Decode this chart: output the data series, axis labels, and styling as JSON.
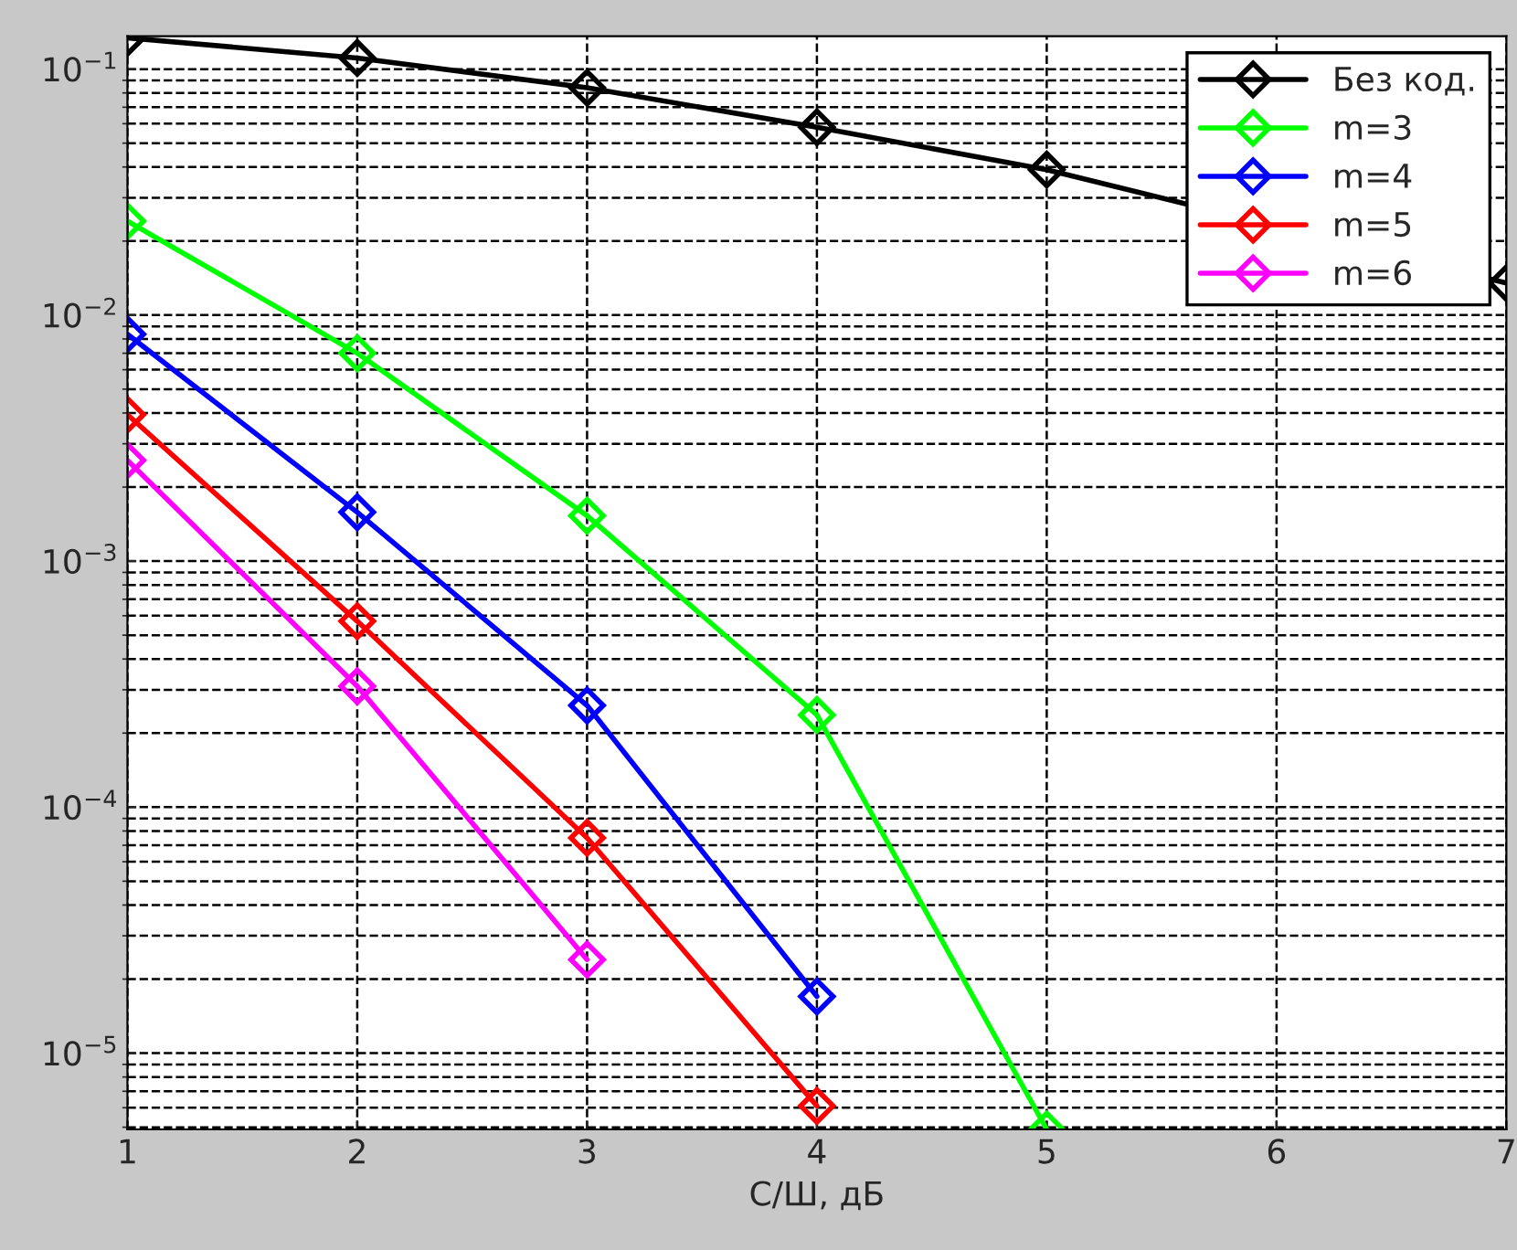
{
  "chart_data": {
    "type": "line",
    "xlabel": "С/Ш, дБ",
    "x": [
      1,
      2,
      3,
      4,
      5,
      6,
      7
    ],
    "series": [
      {
        "name": "Без код.",
        "color": "#000000",
        "values": [
          0.134,
          0.111,
          0.084,
          0.058,
          0.039,
          null,
          0.0135
        ]
      },
      {
        "name": "m=3",
        "color": "#00ff00",
        "values": [
          0.0241,
          0.007,
          0.00153,
          0.000237,
          4.9e-06,
          null,
          null
        ]
      },
      {
        "name": "m=4",
        "color": "#0000ff",
        "values": [
          0.00836,
          0.00158,
          0.000259,
          1.7e-05,
          null,
          null,
          null
        ]
      },
      {
        "name": "m=5",
        "color": "#ff0000",
        "values": [
          0.00394,
          0.00057,
          7.5e-05,
          6.1e-06,
          null,
          null,
          null
        ]
      },
      {
        "name": "m=6",
        "color": "#ff00ff",
        "values": [
          0.00257,
          0.00031,
          2.4e-05,
          null,
          null,
          null,
          null
        ]
      }
    ],
    "log": "y",
    "xlim": [
      1,
      7
    ],
    "xticks": [
      1,
      2,
      3,
      4,
      5,
      6,
      7
    ],
    "ylim": [
      4.9e-06,
      0.136
    ],
    "yticks": [
      {
        "value": 1e-05,
        "label": "10$^{−5}$"
      },
      {
        "value": 0.0001,
        "label": "10$^{−4}$"
      },
      {
        "value": 0.001,
        "label": "10$^{−3}$"
      },
      {
        "value": 0.01,
        "label": "10$^{−2}$"
      },
      {
        "value": 0.1,
        "label": "10$^{−1}$"
      }
    ],
    "grid": true,
    "legend": "top right",
    "marker": "diamond",
    "line_style": "solid"
  }
}
